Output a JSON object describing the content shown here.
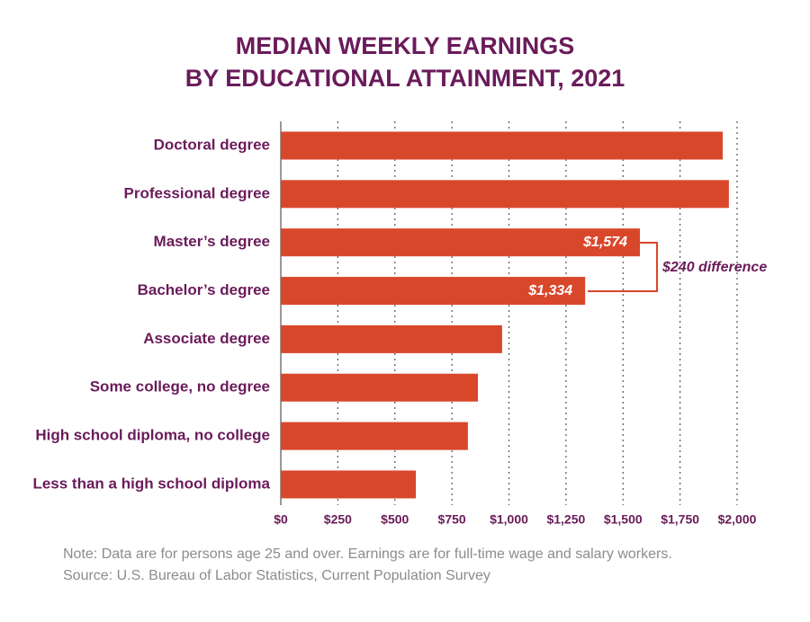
{
  "chart_data": {
    "type": "bar",
    "orientation": "horizontal",
    "title": [
      "MEDIAN WEEKLY EARNINGS",
      "BY EDUCATIONAL ATTAINMENT, 2021"
    ],
    "categories": [
      "Doctoral degree",
      "Professional degree",
      "Master’s degree",
      "Bachelor’s degree",
      "Associate degree",
      "Some college, no degree",
      "High school diploma, no college",
      "Less than a high school diploma"
    ],
    "values": [
      1937,
      1964,
      1574,
      1334,
      970,
      864,
      820,
      592
    ],
    "value_labels": [
      null,
      null,
      "$1,574",
      "$1,334",
      null,
      null,
      null,
      null
    ],
    "color": "#d9472b",
    "xlim": [
      0,
      2000
    ],
    "xticks": [
      {
        "value": 0,
        "label": "$0"
      },
      {
        "value": 250,
        "label": "$250"
      },
      {
        "value": 500,
        "label": "$500"
      },
      {
        "value": 750,
        "label": "$750"
      },
      {
        "value": 1000,
        "label": "$1,000"
      },
      {
        "value": 1250,
        "label": "$1,250"
      },
      {
        "value": 1500,
        "label": "$1,500"
      },
      {
        "value": 1750,
        "label": "$1,750"
      },
      {
        "value": 2000,
        "label": "$2,000"
      }
    ],
    "grid": true,
    "annotation": "$240 difference",
    "notes": [
      "Note: Data are for persons age 25 and over. Earnings are for full-time wage and salary workers.",
      "Source: U.S. Bureau of Labor Statistics, Current Population Survey"
    ]
  }
}
